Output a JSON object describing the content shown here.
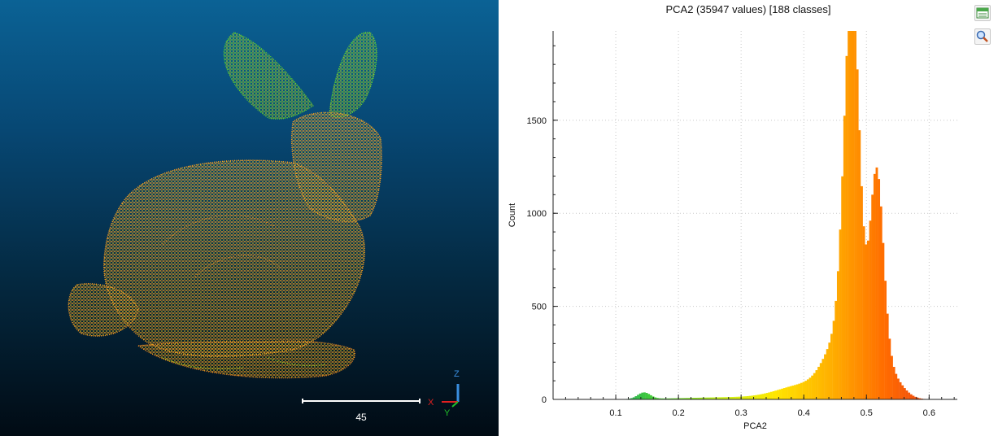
{
  "viewer": {
    "scale_label": "45",
    "axes": {
      "x": "X",
      "y": "Y",
      "z": "Z"
    },
    "colors": {
      "bg_top": "#0b6295",
      "bg_bottom": "#010b14",
      "axis_x": "#e02020",
      "axis_y": "#22c02a",
      "axis_z": "#3a8fe0"
    }
  },
  "histogram": {
    "title": "PCA2 (35947 values)  [188 classes]",
    "toolbar": {
      "export_icon": "csv-export-icon",
      "zoom_icon": "zoom-icon"
    }
  },
  "chart_data": {
    "type": "bar",
    "title": "PCA2 (35947 values)  [188 classes]",
    "xlabel": "PCA2",
    "ylabel": "Count",
    "xlim": [
      0.0,
      0.645
    ],
    "ylim": [
      0,
      1980
    ],
    "x_ticks": [
      0.1,
      0.2,
      0.3,
      0.4,
      0.5,
      0.6
    ],
    "x_tick_labels": [
      "0.1",
      "0.2",
      "0.3",
      "0.4",
      "0.5",
      "0.6"
    ],
    "y_ticks": [
      0,
      500,
      1000,
      1500
    ],
    "y_tick_labels": [
      "0",
      "500",
      "1000",
      "1500"
    ],
    "grid": true,
    "peaks": [
      {
        "x": 0.477,
        "count": 1980
      },
      {
        "x": 0.516,
        "count": 1120
      }
    ],
    "minor_peak": {
      "x": 0.145,
      "count": 35
    },
    "colormap": [
      "#1a3aa8",
      "#1aa06a",
      "#4fd82a",
      "#c8f21a",
      "#ffe600",
      "#ffb000",
      "#ff6a00",
      "#e8401a"
    ]
  }
}
